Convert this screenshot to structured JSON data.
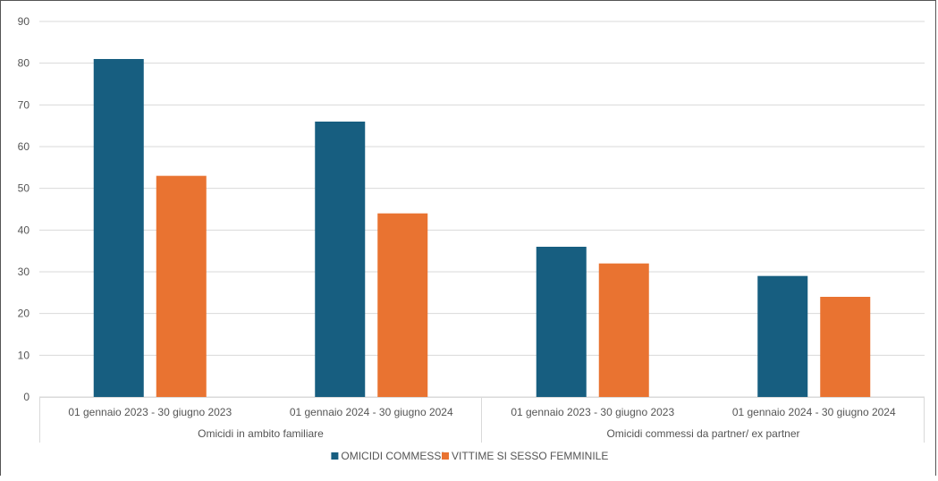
{
  "chart_data": {
    "type": "bar",
    "title": "",
    "xlabel": "",
    "ylabel": "",
    "ylim": [
      0,
      90
    ],
    "yticks": [
      0,
      10,
      20,
      30,
      40,
      50,
      60,
      70,
      80,
      90
    ],
    "grid": true,
    "legend_position": "bottom-center",
    "groups": [
      {
        "label": "Omicidi in ambito familiare",
        "categories": [
          "01 gennaio 2023 - 30 giugno 2023",
          "01 gennaio 2024 - 30 giugno 2024"
        ]
      },
      {
        "label": "Omicidi commessi da partner/ ex partner",
        "categories": [
          "01 gennaio 2023 - 30 giugno 2023",
          "01 gennaio 2024 - 30 giugno 2024"
        ]
      }
    ],
    "categories": [
      "01 gennaio 2023 - 30 giugno 2023",
      "01 gennaio 2024 - 30 giugno 2024",
      "01 gennaio 2023 - 30 giugno 2023",
      "01 gennaio 2024 - 30 giugno 2024"
    ],
    "series": [
      {
        "name": "OMICIDI COMMESSI",
        "color": "#175e80",
        "values": [
          81,
          66,
          36,
          29
        ]
      },
      {
        "name": "VITTIME SI SESSO FEMMINILE",
        "color": "#e97331",
        "values": [
          53,
          44,
          32,
          24
        ]
      }
    ]
  }
}
